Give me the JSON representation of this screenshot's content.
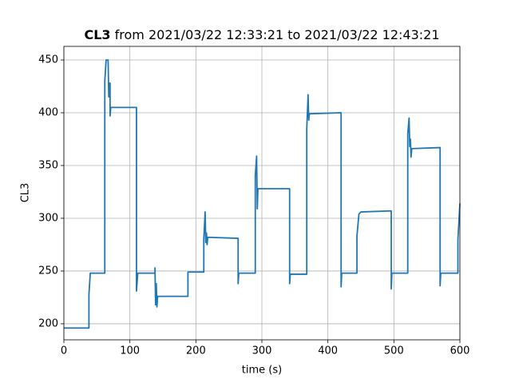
{
  "chart_data": {
    "type": "line",
    "title": [
      "CL3",
      "from 2021/03/22 12:33:21 to 2021/03/22 12:43:21"
    ],
    "xlabel": "time (s)",
    "ylabel": "CL3",
    "xlim": [
      0,
      600
    ],
    "ylim": [
      184.8,
      462.9
    ],
    "xticks": [
      0,
      100,
      200,
      300,
      400,
      500,
      600
    ],
    "yticks": [
      200,
      250,
      300,
      350,
      400,
      450
    ],
    "grid": true,
    "x": [
      0,
      38,
      38,
      40,
      62,
      62,
      64,
      67,
      68,
      69,
      70,
      70,
      71,
      72,
      110,
      110,
      112,
      138,
      138,
      139,
      140,
      141,
      142,
      188,
      188,
      212,
      212,
      214,
      215,
      216,
      217,
      218,
      264,
      264,
      265,
      290,
      290,
      292,
      293,
      294,
      342,
      342,
      343,
      368,
      368,
      370,
      371,
      372,
      420,
      420,
      421,
      444,
      444,
      447,
      450,
      496,
      496,
      497,
      521,
      521,
      523,
      524,
      525,
      526,
      527,
      570,
      570,
      571,
      597,
      597,
      600
    ],
    "series": [
      {
        "name": "CL3",
        "color": "#1f77b4",
        "values": [
          196,
          196,
          228,
          248,
          248,
          430,
          450,
          450,
          415,
          428,
          428,
          397,
          405,
          405,
          405,
          231,
          248,
          248,
          253,
          218,
          238,
          216,
          226,
          226,
          249,
          249,
          280,
          306,
          277,
          286,
          275,
          282,
          281,
          238,
          248,
          248,
          340,
          359,
          309,
          328,
          328,
          238,
          247,
          247,
          385,
          417,
          393,
          399,
          400,
          235,
          248,
          248,
          283,
          304,
          306,
          307,
          233,
          248,
          248,
          380,
          395,
          368,
          375,
          358,
          366,
          367,
          236,
          248,
          248,
          280,
          314
        ]
      }
    ]
  }
}
